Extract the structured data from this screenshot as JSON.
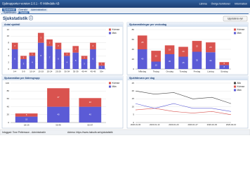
{
  "header": {
    "app_title": "Sjukrapporter version 2.0.1 - © Mölndals AB",
    "links": [
      "Lämna",
      "Övriga funktioner",
      "Information"
    ]
  },
  "nav": [
    "Sjukanmäl",
    "Översikt",
    "Administration"
  ],
  "subnav": [
    "Sjukfrånvaro",
    "Statistik"
  ],
  "page_title": "Sjukstatistik ⓘ",
  "button": "Uppdatera vyn",
  "chart_data": [
    {
      "type": "bar",
      "title": "Antal sjukfall",
      "categories": [
        "0-4",
        "5-9",
        "10-14",
        "15-19",
        "20-24",
        "25-29",
        "30-34",
        "35-39",
        "40-44",
        "45-49",
        "50+"
      ],
      "series": [
        {
          "name": "Kvinnor",
          "color": "#d9534f",
          "values": [
            2,
            1,
            1,
            3,
            2,
            2,
            1,
            2,
            1,
            2,
            1
          ]
        },
        {
          "name": "Män",
          "color": "#5b5bd6",
          "values": [
            6,
            3,
            4,
            8,
            7,
            6,
            4,
            5,
            3,
            6,
            1
          ]
        }
      ],
      "ylim": [
        0,
        12
      ],
      "yticks": [
        0,
        2,
        4,
        6,
        8,
        10,
        12
      ],
      "grid": true
    },
    {
      "type": "bar",
      "title": "Sjukanmälningar per veckodag",
      "categories": [
        "Måndag",
        "Tisdag",
        "Onsdag",
        "Torsdag",
        "Fredag",
        "Lördag",
        "Söndag"
      ],
      "series": [
        {
          "name": "Kvinnor",
          "color": "#d9534f",
          "values": [
            28,
            22,
            18,
            20,
            22,
            20,
            6
          ]
        },
        {
          "name": "Män",
          "color": "#5b5bd6",
          "values": [
            40,
            15,
            30,
            25,
            35,
            34,
            8
          ]
        }
      ],
      "ylim": [
        0,
        80
      ],
      "yticks": [
        0,
        20,
        40,
        60,
        80
      ],
      "grid": true
    },
    {
      "type": "bar",
      "title": "Sjukanmälan per åldersgrupp",
      "categories": [
        "18-29",
        "30-49",
        "50-67"
      ],
      "series": [
        {
          "name": "Kvinnor",
          "color": "#d9534f",
          "values": [
            8,
            47,
            22
          ]
        },
        {
          "name": "Män",
          "color": "#5b5bd6",
          "values": [
            15,
            40,
            40
          ]
        }
      ],
      "ylim": [
        0,
        100
      ],
      "yticks": [
        0,
        20,
        40,
        60,
        80,
        100
      ],
      "grid": true
    },
    {
      "type": "line",
      "title": "Sjukfrånvaro per dag",
      "x": [
        "2020-01-06",
        "2020-01-13",
        "2020-01-20",
        "2020-01-27",
        "2020-02-03",
        "2020-02-10"
      ],
      "series": [
        {
          "name": "Alla",
          "color": "#444444",
          "values": [
            20,
            18,
            19,
            15,
            16,
            12
          ]
        },
        {
          "name": "Kvinnor",
          "color": "#d9534f",
          "values": [
            8,
            9,
            7,
            6,
            7,
            5
          ]
        },
        {
          "name": "Män",
          "color": "#5b5bd6",
          "values": [
            12,
            9,
            12,
            9,
            9,
            7
          ]
        }
      ],
      "ylim": [
        0,
        25
      ],
      "yticks": [
        0,
        5,
        10,
        15,
        20,
        25
      ],
      "grid": true
    }
  ],
  "footer": [
    "Inloggad: Tove Pettersson - Administratör",
    "Adress: https://www.halsoliv.se/sjukstatistik"
  ]
}
